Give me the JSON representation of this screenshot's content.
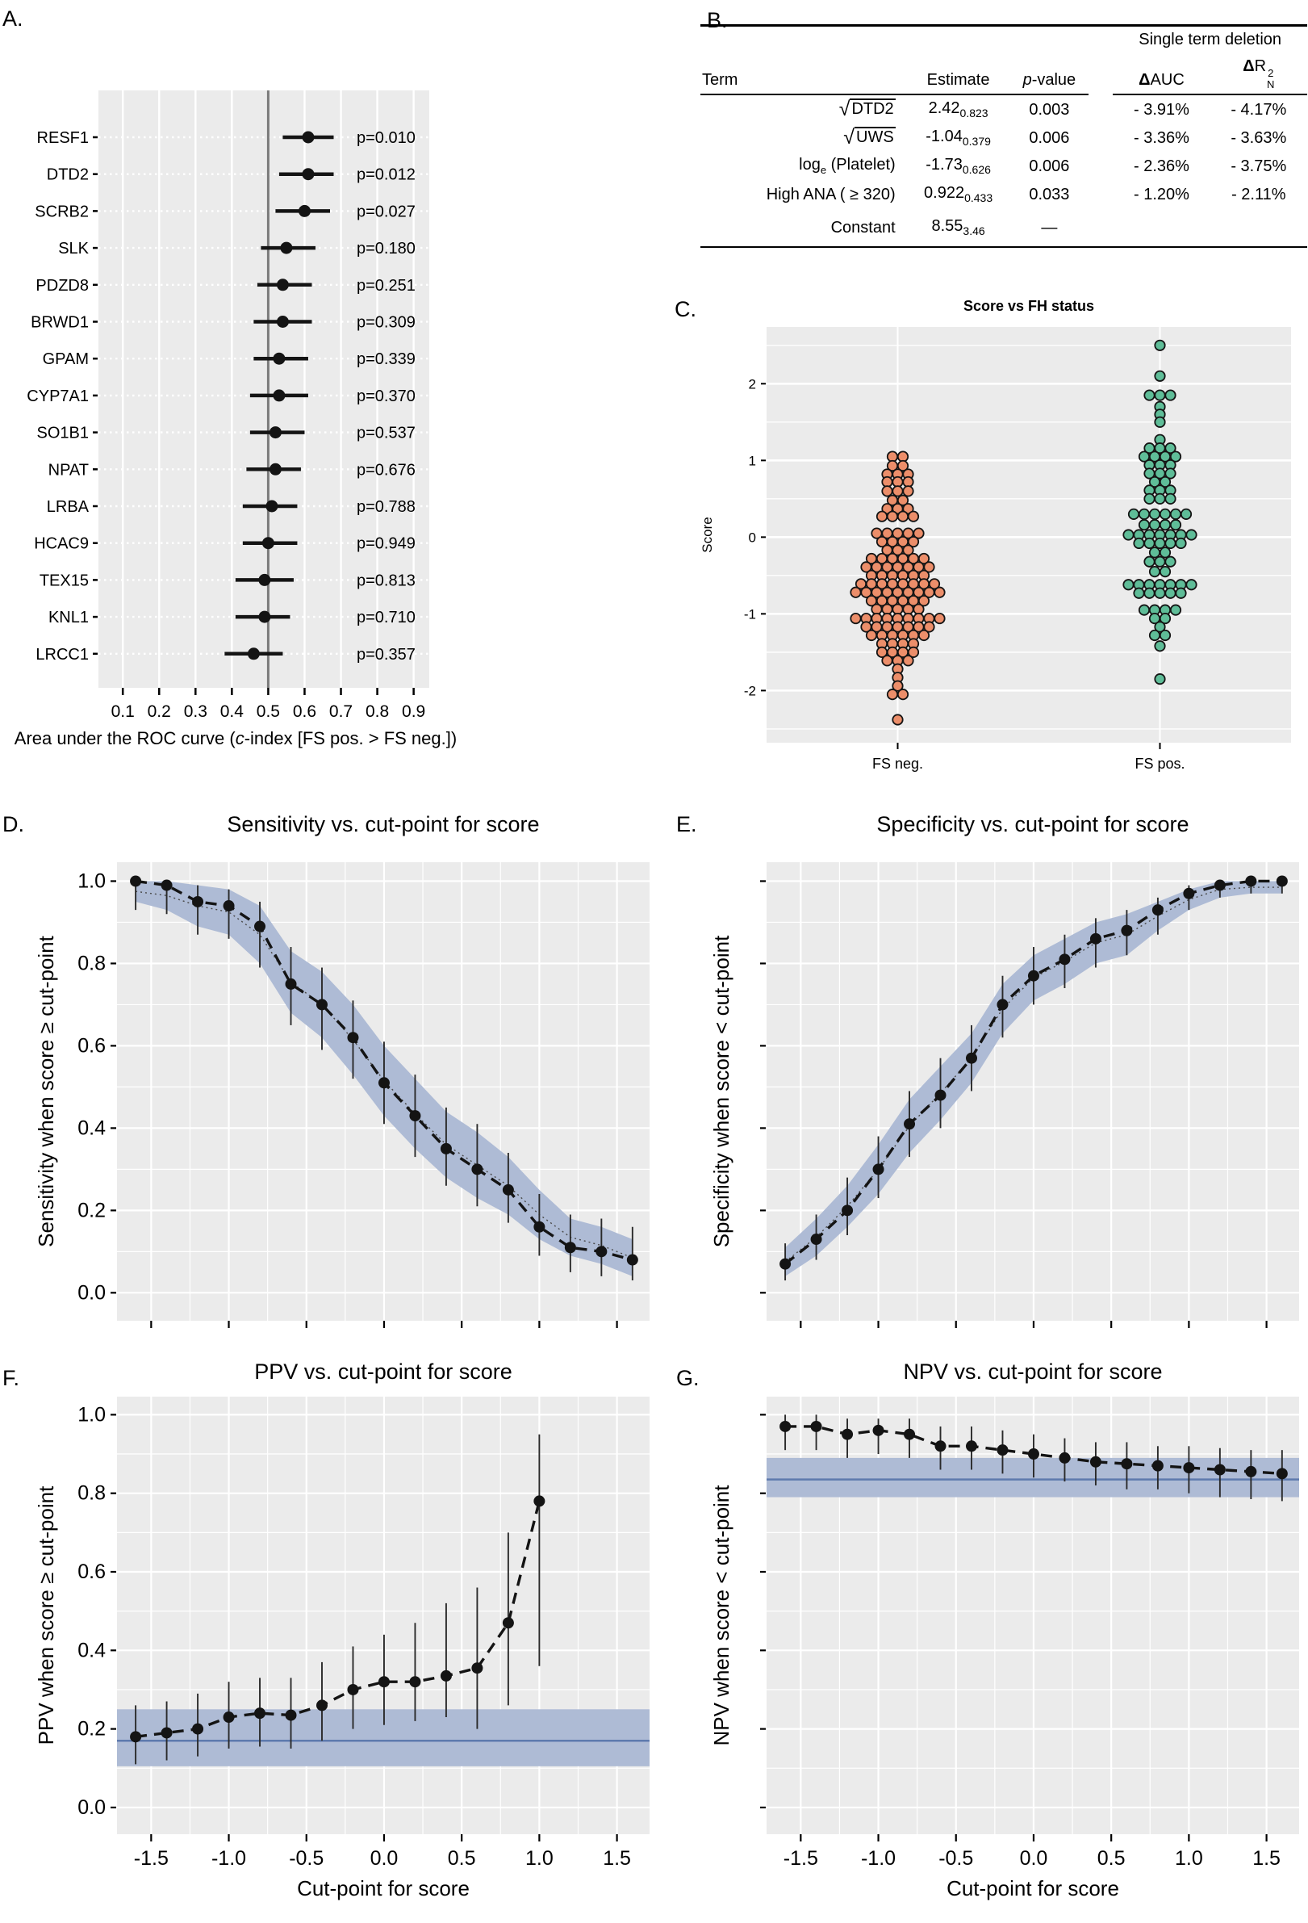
{
  "colors": {
    "panel_bg": "#EBEBEB",
    "grid": "#FFFFFF",
    "ref_line": "#7B7B7B",
    "band_fill": "#AEBBD5",
    "band_line": "#5E7AAE",
    "point": "#141414",
    "fs_neg": "#EC8E6A",
    "fs_pos": "#5FBD98"
  },
  "panel_labels": {
    "A": "A.",
    "B": "B.",
    "C": "C.",
    "D": "D.",
    "E": "E.",
    "F": "F.",
    "G": "G."
  },
  "table_b": {
    "group_header": "Single term deletion",
    "col_term": "Term",
    "col_estimate": "Estimate",
    "col_p_italic": "p",
    "col_p_rest": "-value",
    "col_dauc_delta": "Δ",
    "col_dauc_rest": "AUC",
    "col_dr2_delta": "Δ",
    "col_dr2_base": "R",
    "col_dr2_sup": "2",
    "col_dr2_sub": "N",
    "rows": [
      {
        "term_sqrt": true,
        "term": "DTD2",
        "estimate": "2.42",
        "se": "0.823",
        "p": "0.003",
        "d_auc": "- 3.91%",
        "d_r2": "- 4.17%"
      },
      {
        "term_sqrt": true,
        "term": "UWS",
        "estimate": "-1.04",
        "se": "0.379",
        "p": "0.006",
        "d_auc": "- 3.36%",
        "d_r2": "- 3.63%"
      },
      {
        "term_sqrt": false,
        "term_pre": "log",
        "term_sub": "e",
        "term_post": " (Platelet)",
        "term": "",
        "estimate": "-1.73",
        "se": "0.626",
        "p": "0.006",
        "d_auc": "- 2.36%",
        "d_r2": "- 3.75%"
      },
      {
        "term_sqrt": false,
        "term": "High ANA ( ≥ 320)",
        "estimate": "0.922",
        "se": "0.433",
        "p": "0.033",
        "d_auc": "- 1.20%",
        "d_r2": "- 2.11%"
      },
      {
        "term_sqrt": false,
        "term": "Constant",
        "gap_before": true,
        "estimate": "8.55",
        "se": "3.46",
        "p": "—",
        "d_auc": "",
        "d_r2": ""
      }
    ]
  },
  "chart_data": [
    {
      "id": "A",
      "type": "scatter",
      "subtype": "forest",
      "genes": [
        "RESF1",
        "DTD2",
        "SCRB2",
        "SLK",
        "PDZD8",
        "BRWD1",
        "GPAM",
        "CYP7A1",
        "SO1B1",
        "NPAT",
        "LRBA",
        "HCAC9",
        "TEX15",
        "KNL1",
        "LRCC1"
      ],
      "estimate": [
        0.61,
        0.61,
        0.6,
        0.55,
        0.54,
        0.54,
        0.53,
        0.53,
        0.52,
        0.52,
        0.51,
        0.5,
        0.49,
        0.49,
        0.46
      ],
      "ci_low": [
        0.54,
        0.53,
        0.52,
        0.48,
        0.47,
        0.46,
        0.46,
        0.45,
        0.45,
        0.44,
        0.43,
        0.43,
        0.41,
        0.41,
        0.38
      ],
      "ci_high": [
        0.68,
        0.68,
        0.67,
        0.63,
        0.62,
        0.62,
        0.61,
        0.61,
        0.6,
        0.59,
        0.58,
        0.58,
        0.57,
        0.56,
        0.54
      ],
      "p_labels": [
        "p=0.010",
        "p=0.012",
        "p=0.027",
        "p=0.180",
        "p=0.251",
        "p=0.309",
        "p=0.339",
        "p=0.370",
        "p=0.537",
        "p=0.676",
        "p=0.788",
        "p=0.949",
        "p=0.813",
        "p=0.710",
        "p=0.357"
      ],
      "ref_x": 0.5,
      "xlim": [
        0.033,
        0.943
      ],
      "xticks": [
        0.1,
        0.2,
        0.3,
        0.4,
        0.5,
        0.6,
        0.7,
        0.8,
        0.9
      ],
      "xtick_labels": [
        "0.1",
        "0.2",
        "0.3",
        "0.4",
        "0.5",
        "0.6",
        "0.7",
        "0.8",
        "0.9"
      ],
      "xlabel_pre": "Area under the ROC curve (",
      "xlabel_italic": "c",
      "xlabel_post": "-index [FS pos. > FS neg.])"
    },
    {
      "id": "C",
      "type": "scatter",
      "subtype": "beeswarm",
      "title": "Score vs FH status",
      "ylabel": "Score",
      "ylim": [
        -2.68,
        2.74
      ],
      "yticks": [
        -2,
        -1,
        0,
        1,
        2
      ],
      "ytick_labels": [
        "-2",
        "-1",
        "0",
        "1",
        "2"
      ],
      "groups": [
        {
          "label": "FS neg.",
          "color_key": "fs_neg",
          "rows": [
            [
              1.05,
              2
            ],
            [
              0.93,
              2
            ],
            [
              0.82,
              3
            ],
            [
              0.72,
              3
            ],
            [
              0.6,
              3
            ],
            [
              0.48,
              2
            ],
            [
              0.37,
              3
            ],
            [
              0.27,
              4
            ],
            [
              0.05,
              5
            ],
            [
              -0.06,
              4
            ],
            [
              -0.17,
              3
            ],
            [
              -0.28,
              6
            ],
            [
              -0.39,
              7
            ],
            [
              -0.5,
              6
            ],
            [
              -0.61,
              8
            ],
            [
              -0.72,
              9
            ],
            [
              -0.83,
              6
            ],
            [
              -0.94,
              5
            ],
            [
              -1.06,
              9
            ],
            [
              -1.17,
              7
            ],
            [
              -1.28,
              6
            ],
            [
              -1.39,
              4
            ],
            [
              -1.5,
              4
            ],
            [
              -1.61,
              3
            ],
            [
              -1.72,
              1
            ],
            [
              -1.83,
              1
            ],
            [
              -1.94,
              1
            ],
            [
              -2.05,
              2
            ],
            [
              -2.38,
              1
            ]
          ]
        },
        {
          "label": "FS pos.",
          "color_key": "fs_pos",
          "rows": [
            [
              2.5,
              1
            ],
            [
              2.1,
              1
            ],
            [
              1.85,
              3
            ],
            [
              1.7,
              1
            ],
            [
              1.6,
              1
            ],
            [
              1.5,
              1
            ],
            [
              1.27,
              1
            ],
            [
              1.16,
              3
            ],
            [
              1.05,
              4
            ],
            [
              0.94,
              3
            ],
            [
              0.83,
              3
            ],
            [
              0.72,
              2
            ],
            [
              0.61,
              3
            ],
            [
              0.5,
              3
            ],
            [
              0.3,
              6
            ],
            [
              0.16,
              4
            ],
            [
              0.03,
              7
            ],
            [
              -0.08,
              5
            ],
            [
              -0.2,
              2
            ],
            [
              -0.32,
              3
            ],
            [
              -0.45,
              2
            ],
            [
              -0.62,
              7
            ],
            [
              -0.73,
              5
            ],
            [
              -0.95,
              4
            ],
            [
              -1.06,
              2
            ],
            [
              -1.17,
              1
            ],
            [
              -1.28,
              2
            ],
            [
              -1.42,
              1
            ],
            [
              -1.85,
              1
            ]
          ]
        }
      ]
    },
    {
      "id": "D",
      "type": "line",
      "title": "Sensitivity vs. cut-point for score",
      "ylabel": "Sensitivity when score ≥ cut-point",
      "x": [
        -1.6,
        -1.4,
        -1.2,
        -1.0,
        -0.8,
        -0.6,
        -0.4,
        -0.2,
        0.0,
        0.2,
        0.4,
        0.6,
        0.8,
        1.0,
        1.2,
        1.4,
        1.6
      ],
      "y": [
        1.0,
        0.99,
        0.95,
        0.94,
        0.89,
        0.75,
        0.7,
        0.62,
        0.51,
        0.43,
        0.35,
        0.3,
        0.25,
        0.16,
        0.11,
        0.1,
        0.08
      ],
      "err_low": [
        0.93,
        0.92,
        0.87,
        0.86,
        0.79,
        0.65,
        0.59,
        0.52,
        0.41,
        0.33,
        0.26,
        0.21,
        0.17,
        0.09,
        0.05,
        0.04,
        0.03
      ],
      "err_high": [
        1.0,
        1.0,
        0.99,
        0.98,
        0.95,
        0.84,
        0.79,
        0.71,
        0.61,
        0.53,
        0.45,
        0.41,
        0.34,
        0.24,
        0.19,
        0.18,
        0.16
      ],
      "band_low": [
        0.95,
        0.93,
        0.89,
        0.87,
        0.8,
        0.68,
        0.62,
        0.53,
        0.43,
        0.35,
        0.28,
        0.23,
        0.19,
        0.13,
        0.09,
        0.07,
        0.04
      ],
      "band_high": [
        1.0,
        1.0,
        0.99,
        0.98,
        0.94,
        0.83,
        0.78,
        0.7,
        0.6,
        0.52,
        0.44,
        0.39,
        0.33,
        0.25,
        0.18,
        0.16,
        0.13
      ],
      "ylim": [
        -0.068,
        1.046
      ],
      "yticks": [
        0.0,
        0.2,
        0.4,
        0.6,
        0.8,
        1.0
      ],
      "ytick_labels": [
        "0.0",
        "0.2",
        "0.4",
        "0.6",
        "0.8",
        "1.0"
      ],
      "xticks": [
        -1.5,
        -1.0,
        -0.5,
        0.0,
        0.5,
        1.0,
        1.5
      ],
      "xtick_labels": [],
      "xlabel": ""
    },
    {
      "id": "E",
      "type": "line",
      "title": "Specificity vs. cut-point for score",
      "ylabel": "Specificity when score < cut-point",
      "x": [
        -1.6,
        -1.4,
        -1.2,
        -1.0,
        -0.8,
        -0.6,
        -0.4,
        -0.2,
        0.0,
        0.2,
        0.4,
        0.6,
        0.8,
        1.0,
        1.2,
        1.4,
        1.6
      ],
      "y": [
        0.07,
        0.13,
        0.2,
        0.3,
        0.41,
        0.48,
        0.57,
        0.7,
        0.77,
        0.81,
        0.86,
        0.88,
        0.93,
        0.97,
        0.99,
        1.0,
        1.0
      ],
      "err_low": [
        0.03,
        0.08,
        0.14,
        0.23,
        0.33,
        0.4,
        0.49,
        0.62,
        0.7,
        0.74,
        0.79,
        0.82,
        0.87,
        0.93,
        0.96,
        0.97,
        0.97
      ],
      "err_high": [
        0.12,
        0.19,
        0.28,
        0.38,
        0.49,
        0.57,
        0.65,
        0.77,
        0.84,
        0.87,
        0.91,
        0.93,
        0.96,
        0.99,
        1.0,
        1.0,
        1.0
      ],
      "band_low": [
        0.04,
        0.09,
        0.16,
        0.24,
        0.34,
        0.42,
        0.51,
        0.63,
        0.71,
        0.75,
        0.8,
        0.82,
        0.88,
        0.93,
        0.96,
        0.97,
        0.97
      ],
      "band_high": [
        0.11,
        0.18,
        0.26,
        0.36,
        0.47,
        0.55,
        0.63,
        0.75,
        0.82,
        0.86,
        0.9,
        0.92,
        0.95,
        0.98,
        1.0,
        1.0,
        1.0
      ],
      "ylim": [
        -0.068,
        1.046
      ],
      "yticks": [
        0.0,
        0.2,
        0.4,
        0.6,
        0.8,
        1.0
      ],
      "ytick_labels": [],
      "xticks": [
        -1.5,
        -1.0,
        -0.5,
        0.0,
        0.5,
        1.0,
        1.5
      ],
      "xtick_labels": [],
      "xlabel": ""
    },
    {
      "id": "F",
      "type": "line",
      "title": "PPV vs. cut-point for score",
      "ylabel": "PPV when score ≥ cut-point",
      "x": [
        -1.6,
        -1.4,
        -1.2,
        -1.0,
        -0.8,
        -0.6,
        -0.4,
        -0.2,
        0.0,
        0.2,
        0.4,
        0.6,
        0.8,
        1.0
      ],
      "y": [
        0.18,
        0.19,
        0.2,
        0.23,
        0.24,
        0.235,
        0.26,
        0.3,
        0.32,
        0.32,
        0.335,
        0.355,
        0.47,
        0.78
      ],
      "err_low": [
        0.11,
        0.12,
        0.13,
        0.15,
        0.155,
        0.15,
        0.17,
        0.2,
        0.21,
        0.22,
        0.23,
        0.2,
        0.26,
        0.36
      ],
      "err_high": [
        0.26,
        0.27,
        0.29,
        0.32,
        0.33,
        0.33,
        0.37,
        0.41,
        0.44,
        0.47,
        0.52,
        0.56,
        0.7,
        0.95
      ],
      "hband": [
        0.105,
        0.25
      ],
      "hband_line": 0.17,
      "ylim": [
        -0.068,
        1.046
      ],
      "yticks": [
        0.0,
        0.2,
        0.4,
        0.6,
        0.8,
        1.0
      ],
      "ytick_labels": [
        "0.0",
        "0.2",
        "0.4",
        "0.6",
        "0.8",
        "1.0"
      ],
      "xticks": [
        -1.5,
        -1.0,
        -0.5,
        0.0,
        0.5,
        1.0,
        1.5
      ],
      "xtick_labels": [
        "-1.5",
        "-1.0",
        "-0.5",
        "0.0",
        "0.5",
        "1.0",
        "1.5"
      ],
      "xlabel": "Cut-point for score"
    },
    {
      "id": "G",
      "type": "line",
      "title": "NPV vs. cut-point for score",
      "ylabel": "NPV when score < cut-point",
      "x": [
        -1.6,
        -1.4,
        -1.2,
        -1.0,
        -0.8,
        -0.6,
        -0.4,
        -0.2,
        0.0,
        0.2,
        0.4,
        0.6,
        0.8,
        1.0,
        1.2,
        1.4,
        1.6
      ],
      "y": [
        0.97,
        0.97,
        0.95,
        0.96,
        0.95,
        0.92,
        0.92,
        0.91,
        0.9,
        0.89,
        0.88,
        0.875,
        0.87,
        0.865,
        0.86,
        0.855,
        0.85
      ],
      "err_low": [
        0.91,
        0.91,
        0.89,
        0.9,
        0.89,
        0.86,
        0.86,
        0.85,
        0.84,
        0.83,
        0.82,
        0.81,
        0.81,
        0.8,
        0.79,
        0.785,
        0.78
      ],
      "err_high": [
        1.0,
        1.0,
        0.99,
        0.99,
        0.99,
        0.97,
        0.97,
        0.96,
        0.95,
        0.94,
        0.93,
        0.93,
        0.92,
        0.92,
        0.915,
        0.91,
        0.91
      ],
      "hband": [
        0.79,
        0.89
      ],
      "hband_line": 0.835,
      "ylim": [
        -0.068,
        1.046
      ],
      "yticks": [
        0.0,
        0.2,
        0.4,
        0.6,
        0.8,
        1.0
      ],
      "ytick_labels": [],
      "xticks": [
        -1.5,
        -1.0,
        -0.5,
        0.0,
        0.5,
        1.0,
        1.5
      ],
      "xtick_labels": [
        "-1.5",
        "-1.0",
        "-0.5",
        "0.0",
        "0.5",
        "1.0",
        "1.5"
      ],
      "xlabel": "Cut-point for score"
    }
  ]
}
